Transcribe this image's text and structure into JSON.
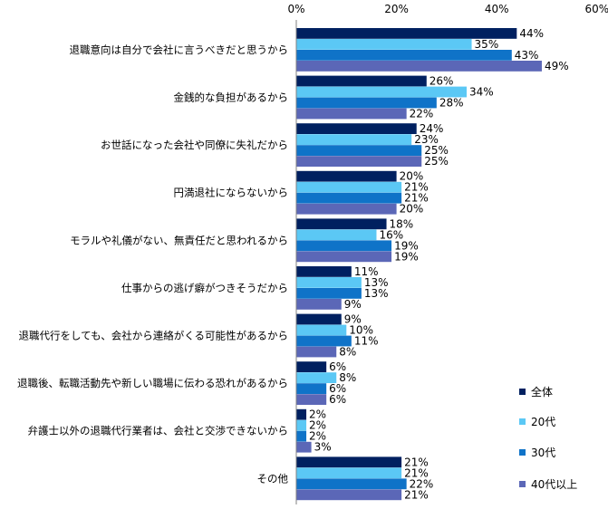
{
  "chart_data": {
    "type": "bar",
    "orientation": "horizontal",
    "title": "",
    "xlabel": "",
    "ylabel": "",
    "xlim": [
      0,
      60
    ],
    "ticks": [
      0,
      20,
      40,
      60
    ],
    "tick_labels": [
      "0%",
      "20%",
      "40%",
      "60%"
    ],
    "unit": "%",
    "grid": false,
    "legend_position": "bottom-right",
    "categories": [
      "退職意向は自分で会社に言うべきだと思うから",
      "金銭的な負担があるから",
      "お世話になった会社や同僚に失礼だから",
      "円満退社にならないから",
      "モラルや礼儀がない、無責任だと思われるから",
      "仕事からの逃げ癖がつきそうだから",
      "退職代行をしても、会社から連絡がくる可能性があるから",
      "退職後、転職活動先や新しい職場に伝わる恐れがあるから",
      "弁護士以外の退職代行業者は、会社と交渉できないから",
      "その他"
    ],
    "series": [
      {
        "name": "全体",
        "color": "#002060",
        "values": [
          44,
          26,
          24,
          20,
          18,
          11,
          9,
          6,
          2,
          21
        ]
      },
      {
        "name": "20代",
        "color": "#5BC8F5",
        "values": [
          35,
          34,
          23,
          21,
          16,
          13,
          10,
          8,
          2,
          21
        ]
      },
      {
        "name": "30代",
        "color": "#0F73C8",
        "values": [
          43,
          28,
          25,
          21,
          19,
          13,
          11,
          6,
          2,
          22
        ]
      },
      {
        "name": "40代以上",
        "color": "#5B67B7",
        "values": [
          49,
          22,
          25,
          20,
          19,
          9,
          8,
          6,
          3,
          21
        ]
      }
    ]
  }
}
